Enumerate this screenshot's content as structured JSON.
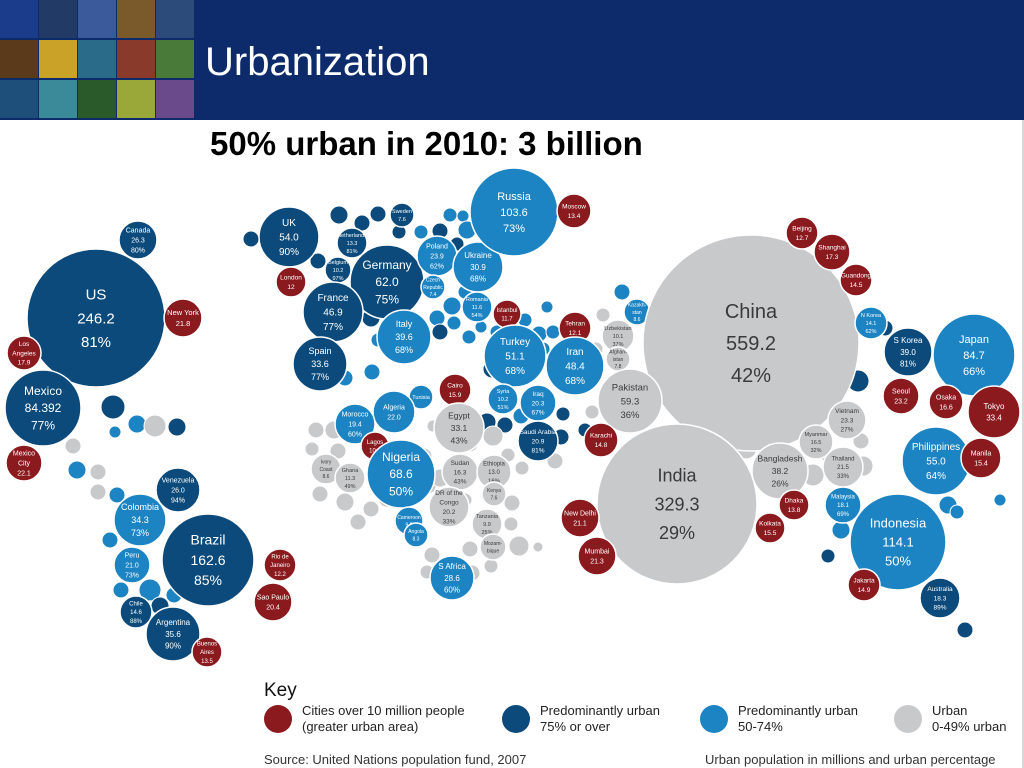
{
  "slide": {
    "title": "Urbanization",
    "subtitle": "50% urban in 2010: 3 billion"
  },
  "colors": {
    "header_bg": "#0d2a6b",
    "cities": "#8b1a1f",
    "predominantly_urban_75": "#0b4a7a",
    "predominantly_urban_50": "#1c84c2",
    "urban_under_50": "#c8c9cb"
  },
  "key": {
    "title": "Key",
    "items": [
      {
        "category": "cities",
        "line1": "Cities over 10 million people",
        "line2": "(greater urban area)",
        "color": "#8b1a1f"
      },
      {
        "category": "dark",
        "line1": "Predominantly urban",
        "line2": "75% or over",
        "color": "#0b4a7a"
      },
      {
        "category": "mid",
        "line1": "Predominantly urban",
        "line2": "50-74%",
        "color": "#1c84c2"
      },
      {
        "category": "grey",
        "line1": "Urban",
        "line2": "0-49% urban",
        "color": "#c8c9cb"
      }
    ]
  },
  "source": "Source: United Nations population fund, 2007",
  "footnote": "Urban population in millions and urban percentage",
  "bubbles": [
    {
      "name": "US",
      "value": "246.2",
      "pct": "81%",
      "category": "dark"
    },
    {
      "name": "Canada",
      "value": "26.3",
      "pct": "80%",
      "category": "dark"
    },
    {
      "name": "New York",
      "value": "21.8",
      "pct": "",
      "category": "cities"
    },
    {
      "name": "Los Angeles",
      "value": "17.9",
      "pct": "",
      "category": "cities"
    },
    {
      "name": "Mexico",
      "value": "84.392",
      "pct": "77%",
      "category": "dark"
    },
    {
      "name": "Mexico City",
      "value": "22.1",
      "pct": "",
      "category": "cities"
    },
    {
      "name": "Venezuela",
      "value": "26.0",
      "pct": "94%",
      "category": "dark"
    },
    {
      "name": "Colombia",
      "value": "34.3",
      "pct": "73%",
      "category": "mid"
    },
    {
      "name": "Brazil",
      "value": "162.6",
      "pct": "85%",
      "category": "dark"
    },
    {
      "name": "Peru",
      "value": "21.0",
      "pct": "73%",
      "category": "mid"
    },
    {
      "name": "Rio de Janeiro",
      "value": "12.2",
      "pct": "",
      "category": "cities"
    },
    {
      "name": "Sao Paulo",
      "value": "20.4",
      "pct": "",
      "category": "cities"
    },
    {
      "name": "Chile",
      "value": "14.6",
      "pct": "88%",
      "category": "dark"
    },
    {
      "name": "Argentina",
      "value": "35.6",
      "pct": "90%",
      "category": "dark"
    },
    {
      "name": "Buenos Aires",
      "value": "13.5",
      "pct": "",
      "category": "cities"
    },
    {
      "name": "UK",
      "value": "54.0",
      "pct": "90%",
      "category": "dark"
    },
    {
      "name": "London",
      "value": "12",
      "pct": "",
      "category": "cities"
    },
    {
      "name": "Netherlands",
      "value": "13.3",
      "pct": "81%",
      "category": "dark"
    },
    {
      "name": "Belgium",
      "value": "10.2",
      "pct": "97%",
      "category": "dark"
    },
    {
      "name": "Sweden",
      "value": "7.6",
      "pct": "",
      "category": "dark"
    },
    {
      "name": "Germany",
      "value": "62.0",
      "pct": "75%",
      "category": "dark"
    },
    {
      "name": "France",
      "value": "46.9",
      "pct": "77%",
      "category": "dark"
    },
    {
      "name": "Spain",
      "value": "33.6",
      "pct": "77%",
      "category": "dark"
    },
    {
      "name": "Italy",
      "value": "39.6",
      "pct": "68%",
      "category": "mid"
    },
    {
      "name": "Poland",
      "value": "23.9",
      "pct": "62%",
      "category": "mid"
    },
    {
      "name": "Czech Republic",
      "value": "7.4",
      "pct": "",
      "category": "mid"
    },
    {
      "name": "Ukraine",
      "value": "30.9",
      "pct": "68%",
      "category": "mid"
    },
    {
      "name": "Romania",
      "value": "11.6",
      "pct": "54%",
      "category": "mid"
    },
    {
      "name": "Russia",
      "value": "103.6",
      "pct": "73%",
      "category": "mid"
    },
    {
      "name": "Moscow",
      "value": "13.4",
      "pct": "",
      "category": "cities"
    },
    {
      "name": "Istanbul",
      "value": "11.7",
      "pct": "",
      "category": "cities"
    },
    {
      "name": "Turkey",
      "value": "51.1",
      "pct": "68%",
      "category": "mid"
    },
    {
      "name": "Tehran",
      "value": "12.1",
      "pct": "",
      "category": "cities"
    },
    {
      "name": "Iran",
      "value": "48.4",
      "pct": "68%",
      "category": "mid"
    },
    {
      "name": "Kazakhstan",
      "value": "8.6",
      "pct": "",
      "category": "mid"
    },
    {
      "name": "Uzbekistan",
      "value": "10.1",
      "pct": "37%",
      "category": "grey"
    },
    {
      "name": "Afghanistan",
      "value": "7.8",
      "pct": "",
      "category": "grey"
    },
    {
      "name": "Syria",
      "value": "10.2",
      "pct": "51%",
      "category": "mid"
    },
    {
      "name": "Iraq",
      "value": "20.3",
      "pct": "67%",
      "category": "mid"
    },
    {
      "name": "Saudi Arabia",
      "value": "20.9",
      "pct": "81%",
      "category": "dark"
    },
    {
      "name": "Cairo",
      "value": "15.9",
      "pct": "",
      "category": "cities"
    },
    {
      "name": "Tunisia",
      "value": "",
      "pct": "",
      "category": "mid"
    },
    {
      "name": "Algeria",
      "value": "22.0",
      "pct": "",
      "category": "mid"
    },
    {
      "name": "Morocco",
      "value": "19.4",
      "pct": "60%",
      "category": "mid"
    },
    {
      "name": "Egypt",
      "value": "33.1",
      "pct": "43%",
      "category": "grey"
    },
    {
      "name": "Lagos",
      "value": "10.0",
      "pct": "",
      "category": "cities"
    },
    {
      "name": "Nigeria",
      "value": "68.6",
      "pct": "50%",
      "category": "mid"
    },
    {
      "name": "Ivory Coast",
      "value": "8.6",
      "pct": "",
      "category": "grey"
    },
    {
      "name": "Ghana",
      "value": "11.3",
      "pct": "49%",
      "category": "grey"
    },
    {
      "name": "Sudan",
      "value": "16.3",
      "pct": "43%",
      "category": "grey"
    },
    {
      "name": "Ethiopia",
      "value": "13.0",
      "pct": "16%",
      "category": "grey"
    },
    {
      "name": "DR of the Congo",
      "value": "20.2",
      "pct": "33%",
      "category": "grey"
    },
    {
      "name": "Kenya",
      "value": "7.6",
      "pct": "",
      "category": "grey"
    },
    {
      "name": "Tanzania",
      "value": "9.9",
      "pct": "25%",
      "category": "grey"
    },
    {
      "name": "Cameroon",
      "value": "9.5",
      "pct": "",
      "category": "mid"
    },
    {
      "name": "Angola",
      "value": "8.3",
      "pct": "",
      "category": "mid"
    },
    {
      "name": "Mozambique",
      "value": "",
      "pct": "",
      "category": "grey"
    },
    {
      "name": "S Africa",
      "value": "28.6",
      "pct": "60%",
      "category": "mid"
    },
    {
      "name": "China",
      "value": "559.2",
      "pct": "42%",
      "category": "grey"
    },
    {
      "name": "India",
      "value": "329.3",
      "pct": "29%",
      "category": "grey"
    },
    {
      "name": "Pakistan",
      "value": "59.3",
      "pct": "36%",
      "category": "grey"
    },
    {
      "name": "Karachi",
      "value": "14.8",
      "pct": "",
      "category": "cities"
    },
    {
      "name": "New Delhi",
      "value": "21.1",
      "pct": "",
      "category": "cities"
    },
    {
      "name": "Mumbai",
      "value": "21.3",
      "pct": "",
      "category": "cities"
    },
    {
      "name": "Bangladesh",
      "value": "38.2",
      "pct": "26%",
      "category": "grey"
    },
    {
      "name": "Dhaka",
      "value": "13.8",
      "pct": "",
      "category": "cities"
    },
    {
      "name": "Kolkata",
      "value": "15.5",
      "pct": "",
      "category": "cities"
    },
    {
      "name": "Beijing",
      "value": "12.7",
      "pct": "",
      "category": "cities"
    },
    {
      "name": "Shanghai",
      "value": "17.3",
      "pct": "",
      "category": "cities"
    },
    {
      "name": "Guandong",
      "value": "14.5",
      "pct": "",
      "category": "cities"
    },
    {
      "name": "N Korea",
      "value": "14.1",
      "pct": "62%",
      "category": "mid"
    },
    {
      "name": "S Korea",
      "value": "39.0",
      "pct": "81%",
      "category": "dark"
    },
    {
      "name": "Seoul",
      "value": "23.2",
      "pct": "",
      "category": "cities"
    },
    {
      "name": "Japan",
      "value": "84.7",
      "pct": "66%",
      "category": "mid"
    },
    {
      "name": "Osaka",
      "value": "16.6",
      "pct": "",
      "category": "cities"
    },
    {
      "name": "Tokyo",
      "value": "33.4",
      "pct": "",
      "category": "cities"
    },
    {
      "name": "Vietnam",
      "value": "23.3",
      "pct": "27%",
      "category": "grey"
    },
    {
      "name": "Myanmar",
      "value": "16.5",
      "pct": "32%",
      "category": "grey"
    },
    {
      "name": "Thailand",
      "value": "21.5",
      "pct": "33%",
      "category": "grey"
    },
    {
      "name": "Philippines",
      "value": "55.0",
      "pct": "64%",
      "category": "mid"
    },
    {
      "name": "Manila",
      "value": "15.4",
      "pct": "",
      "category": "cities"
    },
    {
      "name": "Malaysia",
      "value": "18.1",
      "pct": "69%",
      "category": "mid"
    },
    {
      "name": "Indonesia",
      "value": "114.1",
      "pct": "50%",
      "category": "mid"
    },
    {
      "name": "Jakarta",
      "value": "14.9",
      "pct": "",
      "category": "cities"
    },
    {
      "name": "Australia",
      "value": "18.3",
      "pct": "89%",
      "category": "dark"
    }
  ]
}
